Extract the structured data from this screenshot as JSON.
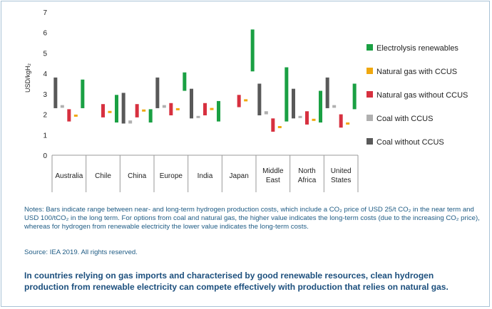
{
  "chart_data": {
    "type": "bar",
    "ylabel": "USD/kgH₂",
    "ylim": [
      0,
      7
    ],
    "yticks": [
      "0",
      "1",
      "2",
      "3",
      "4",
      "5",
      "6",
      "7"
    ],
    "categories": [
      {
        "lines": [
          "Australia"
        ]
      },
      {
        "lines": [
          "Chile"
        ]
      },
      {
        "lines": [
          "China"
        ]
      },
      {
        "lines": [
          "Europe"
        ]
      },
      {
        "lines": [
          "India"
        ]
      },
      {
        "lines": [
          "Japan"
        ]
      },
      {
        "lines": [
          "Middle",
          "East"
        ]
      },
      {
        "lines": [
          "North",
          "Africa"
        ]
      },
      {
        "lines": [
          "United",
          "States"
        ]
      }
    ],
    "series": [
      {
        "name": "Coal without CCUS",
        "color": "#595959",
        "ranges": [
          [
            2.3,
            3.8
          ],
          null,
          [
            1.55,
            3.05
          ],
          [
            2.3,
            3.8
          ],
          [
            1.8,
            3.25
          ],
          null,
          [
            1.95,
            3.5
          ],
          [
            1.8,
            3.25
          ],
          [
            2.3,
            3.8
          ]
        ]
      },
      {
        "name": "Coal with CCUS",
        "color": "#b0b0b0",
        "ranges": [
          [
            2.32,
            2.45
          ],
          null,
          [
            1.55,
            1.7
          ],
          [
            2.32,
            2.45
          ],
          [
            1.82,
            1.92
          ],
          null,
          [
            2.0,
            2.15
          ],
          [
            1.82,
            1.92
          ],
          [
            2.32,
            2.45
          ]
        ]
      },
      {
        "name": "Natural gas without CCUS",
        "color": "#d7303f",
        "ranges": [
          [
            1.65,
            2.25
          ],
          [
            1.85,
            2.5
          ],
          [
            1.85,
            2.5
          ],
          [
            1.95,
            2.55
          ],
          [
            1.95,
            2.55
          ],
          [
            2.35,
            2.95
          ],
          [
            1.15,
            1.8
          ],
          [
            1.5,
            2.15
          ],
          [
            1.35,
            2.0
          ]
        ]
      },
      {
        "name": "Natural gas with CCUS",
        "color": "#f0a80f",
        "ranges": [
          [
            1.9,
            1.97
          ],
          [
            2.08,
            2.15
          ],
          [
            2.15,
            2.22
          ],
          [
            2.22,
            2.28
          ],
          [
            2.22,
            2.3
          ],
          [
            2.65,
            2.72
          ],
          [
            1.33,
            1.42
          ],
          [
            1.68,
            1.78
          ],
          [
            1.5,
            1.6
          ]
        ]
      },
      {
        "name": "Electrolysis renewables",
        "color": "#1aa043",
        "ranges": [
          [
            2.3,
            3.7
          ],
          [
            1.6,
            2.95
          ],
          [
            1.6,
            2.25
          ],
          [
            3.15,
            4.05
          ],
          [
            1.65,
            2.65
          ],
          [
            4.1,
            6.15
          ],
          [
            1.65,
            4.3
          ],
          [
            1.6,
            3.15
          ],
          [
            2.25,
            3.5
          ]
        ]
      }
    ],
    "legend_order": [
      "Electrolysis renewables",
      "Natural gas with CCUS",
      "Natural gas without CCUS",
      "Coal with CCUS",
      "Coal without CCUS"
    ],
    "legend_position": "right"
  },
  "notes": {
    "text": "Notes: Bars indicate range between near- and long-term hydrogen production costs, which include a CO₂ price of USD 25/t CO₂ in the near term and USD 100/tCO₂ in the long term. For options from coal and natural gas, the higher value indicates the long-term costs (due to the increasing CO₂ price), whereas for hydrogen from renewable electricity the lower value indicates the long-term costs.",
    "source": "Source: IEA 2019. All rights reserved."
  },
  "caption": "In countries relying on gas imports and characterised by good renewable resources, clean hydrogen production from renewable electricity can compete effectively with production that relies on natural gas."
}
